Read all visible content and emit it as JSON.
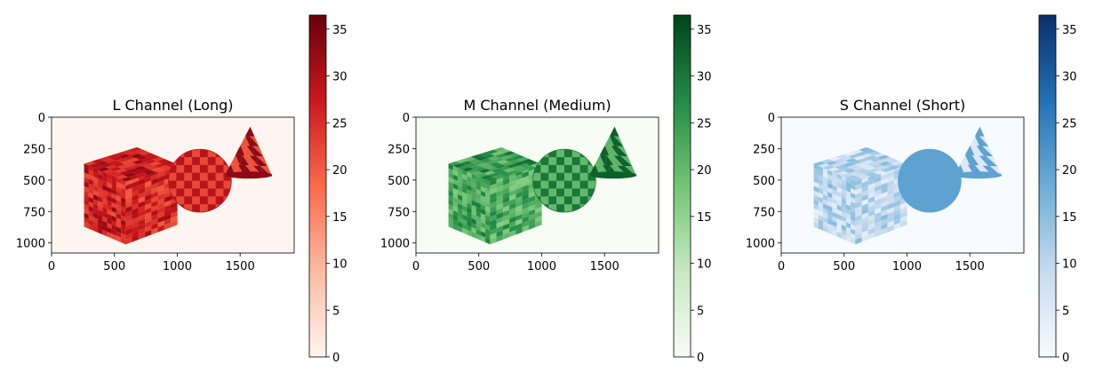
{
  "chart_data": [
    {
      "type": "heatmap",
      "title": "L Channel (Long)",
      "colormap": "Reds",
      "xlim": [
        0,
        1930
      ],
      "ylim": [
        1080,
        0
      ],
      "xticks": [
        0,
        500,
        1000,
        1500
      ],
      "yticks": [
        0,
        250,
        500,
        750,
        1000
      ],
      "colorbar": {
        "range": [
          0,
          36.5
        ],
        "ticks": [
          0,
          5,
          10,
          15,
          20,
          25,
          30,
          35
        ]
      },
      "background_value": 0,
      "objects": [
        {
          "shape": "cube",
          "value_range": [
            21,
            33
          ]
        },
        {
          "shape": "sphere",
          "checker_values": [
            22,
            29
          ]
        },
        {
          "shape": "cone",
          "checker_values": [
            21,
            33
          ]
        }
      ]
    },
    {
      "type": "heatmap",
      "title": "M Channel (Medium)",
      "colormap": "Greens",
      "xlim": [
        0,
        1930
      ],
      "ylim": [
        1080,
        0
      ],
      "xticks": [
        0,
        500,
        1000,
        1500
      ],
      "yticks": [
        0,
        250,
        500,
        750,
        1000
      ],
      "colorbar": {
        "range": [
          0,
          36.5
        ],
        "ticks": [
          0,
          5,
          10,
          15,
          20,
          25,
          30,
          35
        ]
      },
      "background_value": 0,
      "objects": [
        {
          "shape": "cube",
          "value_range": [
            17,
            30
          ]
        },
        {
          "shape": "sphere",
          "checker_values": [
            20,
            30
          ]
        },
        {
          "shape": "cone",
          "checker_values": [
            21,
            33
          ]
        }
      ]
    },
    {
      "type": "heatmap",
      "title": "S Channel (Short)",
      "colormap": "Blues",
      "xlim": [
        0,
        1930
      ],
      "ylim": [
        1080,
        0
      ],
      "xticks": [
        0,
        500,
        1000,
        1500
      ],
      "yticks": [
        0,
        250,
        500,
        750,
        1000
      ],
      "colorbar": {
        "range": [
          0,
          36.5
        ],
        "ticks": [
          0,
          5,
          10,
          15,
          20,
          25,
          30,
          35
        ]
      },
      "background_value": 0,
      "objects": [
        {
          "shape": "cube",
          "value_range": [
            3,
            16
          ]
        },
        {
          "shape": "sphere",
          "checker_values": [
            20,
            20
          ]
        },
        {
          "shape": "cone",
          "checker_values": [
            5,
            20
          ]
        }
      ]
    }
  ],
  "colors": {
    "Reds": [
      "#fff5f0",
      "#fcbba1",
      "#fb6a4a",
      "#cb181d",
      "#67000d"
    ],
    "Greens": [
      "#f7fcf5",
      "#c7e9c0",
      "#74c476",
      "#238b45",
      "#00441b"
    ],
    "Blues": [
      "#f7fbff",
      "#c6dbef",
      "#6baed6",
      "#2171b5",
      "#08306b"
    ]
  }
}
